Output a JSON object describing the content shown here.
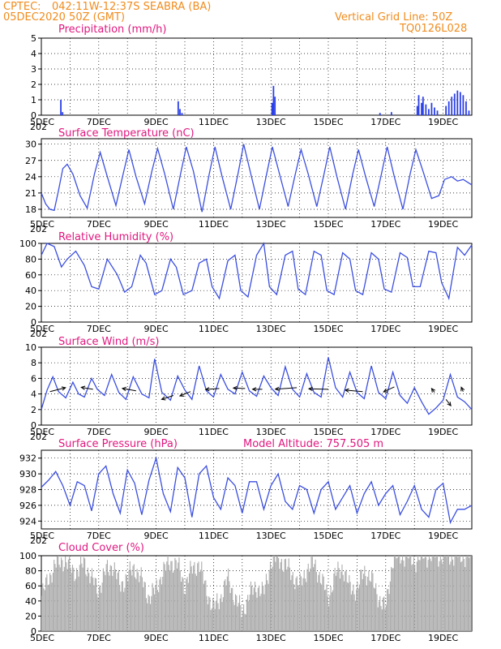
{
  "header": {
    "source": "CPTEC:",
    "location": "042:11W-12:37S  SEABRA (BA)",
    "init_time": "05DEC2020 50Z (GMT)",
    "grid_note": "Vertical Grid Line: 50Z",
    "product_code": "TQ0126L028"
  },
  "x_axis": {
    "first_label": "5DEC",
    "labels": [
      "7DEC",
      "9DEC",
      "11DEC",
      "13DEC",
      "15DEC",
      "17DEC",
      "19DEC"
    ],
    "first_sub": "202"
  },
  "colors": {
    "line": "#3b4fe0",
    "precip": "#2a3fe8",
    "cloud": "#aaaaaa",
    "header": "#f08c1e",
    "panel_title": "#e0187f"
  },
  "chart_data": [
    {
      "type": "bar",
      "title": "Precipitation (mm/h)",
      "ylim": [
        0,
        5
      ],
      "y_ticks": [
        "0",
        "1",
        "2",
        "3",
        "4",
        "5"
      ],
      "grid": true,
      "x_range_days": [
        0,
        15
      ],
      "spikes": [
        {
          "x": 0.68,
          "y": 1.0
        },
        {
          "x": 0.74,
          "y": 0.2
        },
        {
          "x": 4.77,
          "y": 0.9
        },
        {
          "x": 4.83,
          "y": 0.4
        },
        {
          "x": 4.9,
          "y": 0.15
        },
        {
          "x": 8.04,
          "y": 0.8
        },
        {
          "x": 8.09,
          "y": 1.9
        },
        {
          "x": 8.14,
          "y": 1.2
        },
        {
          "x": 11.8,
          "y": 0.15
        },
        {
          "x": 12.2,
          "y": 0.2
        },
        {
          "x": 13.1,
          "y": 0.6
        },
        {
          "x": 13.15,
          "y": 1.3
        },
        {
          "x": 13.25,
          "y": 0.8
        },
        {
          "x": 13.3,
          "y": 1.2
        },
        {
          "x": 13.4,
          "y": 0.7
        },
        {
          "x": 13.5,
          "y": 0.4
        },
        {
          "x": 13.6,
          "y": 0.8
        },
        {
          "x": 13.7,
          "y": 0.5
        },
        {
          "x": 13.8,
          "y": 0.3
        },
        {
          "x": 14.1,
          "y": 0.6
        },
        {
          "x": 14.2,
          "y": 0.9
        },
        {
          "x": 14.3,
          "y": 1.2
        },
        {
          "x": 14.4,
          "y": 1.4
        },
        {
          "x": 14.5,
          "y": 1.6
        },
        {
          "x": 14.6,
          "y": 1.5
        },
        {
          "x": 14.7,
          "y": 1.3
        },
        {
          "x": 14.8,
          "y": 0.9
        },
        {
          "x": 14.9,
          "y": 0.3
        }
      ]
    },
    {
      "type": "line",
      "title": "Surface Temperature (nC)",
      "ylim": [
        16.5,
        31
      ],
      "y_ticks": [
        "18",
        "21",
        "24",
        "27",
        "30"
      ],
      "grid": true,
      "x": [
        0,
        0.15,
        0.3,
        0.45,
        0.6,
        0.75,
        0.9,
        1.1,
        1.35,
        1.6,
        1.85,
        2.05,
        2.3,
        2.6,
        2.85,
        3.05,
        3.3,
        3.6,
        3.85,
        4.05,
        4.3,
        4.6,
        4.85,
        5.05,
        5.3,
        5.6,
        5.85,
        6.05,
        6.3,
        6.6,
        6.85,
        7.05,
        7.3,
        7.6,
        7.85,
        8.05,
        8.3,
        8.6,
        8.85,
        9.05,
        9.3,
        9.6,
        9.85,
        10.05,
        10.3,
        10.6,
        10.85,
        11.05,
        11.3,
        11.6,
        11.85,
        12.05,
        12.3,
        12.6,
        12.85,
        13.05,
        13.3,
        13.6,
        13.85,
        14.05,
        14.3,
        14.5,
        14.7,
        15.0
      ],
      "y": [
        21.0,
        19.0,
        18.0,
        17.8,
        21.5,
        25.5,
        26.3,
        24.5,
        20.5,
        18.2,
        24.5,
        28.5,
        24.0,
        18.7,
        24.5,
        29.0,
        24.0,
        19.0,
        25.0,
        29.2,
        24.5,
        18.0,
        24.5,
        29.5,
        25.0,
        17.5,
        24.5,
        29.5,
        24.0,
        18.0,
        24.5,
        30.0,
        24.5,
        18.0,
        24.5,
        29.5,
        24.5,
        18.5,
        24.5,
        29.0,
        24.5,
        18.5,
        24.5,
        29.5,
        24.0,
        18.0,
        24.5,
        29.0,
        24.0,
        18.5,
        24.5,
        29.5,
        24.0,
        18.0,
        24.5,
        29.0,
        25.0,
        20.0,
        20.5,
        23.5,
        24.0,
        23.2,
        23.5,
        22.5
      ]
    },
    {
      "type": "line",
      "title": "Relative Humidity (%)",
      "ylim": [
        0,
        100
      ],
      "y_ticks": [
        "0",
        "20",
        "40",
        "60",
        "80",
        "100"
      ],
      "grid": true,
      "x": [
        0,
        0.2,
        0.45,
        0.7,
        0.9,
        1.2,
        1.5,
        1.75,
        2.0,
        2.3,
        2.65,
        2.9,
        3.15,
        3.45,
        3.65,
        3.95,
        4.2,
        4.5,
        4.7,
        4.95,
        5.25,
        5.5,
        5.75,
        5.95,
        6.2,
        6.5,
        6.75,
        6.95,
        7.2,
        7.5,
        7.75,
        7.95,
        8.2,
        8.5,
        8.75,
        8.95,
        9.2,
        9.5,
        9.75,
        9.95,
        10.2,
        10.5,
        10.75,
        10.95,
        11.2,
        11.5,
        11.75,
        11.95,
        12.2,
        12.5,
        12.75,
        12.95,
        13.2,
        13.5,
        13.75,
        13.95,
        14.2,
        14.5,
        14.75,
        15.0
      ],
      "y": [
        85,
        100,
        96,
        70,
        80,
        90,
        72,
        45,
        42,
        80,
        60,
        38,
        45,
        85,
        75,
        35,
        40,
        80,
        70,
        35,
        40,
        75,
        80,
        45,
        30,
        78,
        85,
        40,
        32,
        85,
        100,
        45,
        35,
        85,
        90,
        42,
        35,
        90,
        85,
        40,
        35,
        88,
        80,
        40,
        35,
        88,
        80,
        42,
        38,
        88,
        82,
        45,
        45,
        90,
        88,
        50,
        30,
        95,
        85,
        98
      ]
    },
    {
      "type": "line",
      "title": "Surface Wind (m/s)",
      "ylim": [
        0,
        10
      ],
      "y_ticks": [
        "0",
        "2",
        "4",
        "6",
        "8",
        "10"
      ],
      "grid": true,
      "x": [
        0,
        0.2,
        0.4,
        0.6,
        0.85,
        1.1,
        1.3,
        1.5,
        1.75,
        1.95,
        2.2,
        2.45,
        2.7,
        2.95,
        3.2,
        3.5,
        3.75,
        3.95,
        4.2,
        4.5,
        4.75,
        5.0,
        5.25,
        5.5,
        5.75,
        6.0,
        6.25,
        6.5,
        6.75,
        7.0,
        7.25,
        7.5,
        7.75,
        8.0,
        8.25,
        8.5,
        8.75,
        9.0,
        9.25,
        9.5,
        9.75,
        10.0,
        10.25,
        10.5,
        10.75,
        11.0,
        11.25,
        11.5,
        11.75,
        12.0,
        12.25,
        12.5,
        12.75,
        13.0,
        13.25,
        13.5,
        13.75,
        14.0,
        14.25,
        14.5,
        14.75,
        15.0
      ],
      "y": [
        2.0,
        4.5,
        6.2,
        4.3,
        3.5,
        5.5,
        4.0,
        3.6,
        6.0,
        4.6,
        3.8,
        6.5,
        4.2,
        3.3,
        6.2,
        4.0,
        3.5,
        8.5,
        4.2,
        3.2,
        6.3,
        4.5,
        3.3,
        7.6,
        4.4,
        3.6,
        6.5,
        4.6,
        4.0,
        6.8,
        4.4,
        3.7,
        6.3,
        4.8,
        3.8,
        7.5,
        4.6,
        3.6,
        6.6,
        4.2,
        3.6,
        8.7,
        4.8,
        3.6,
        6.8,
        4.2,
        3.4,
        7.6,
        4.2,
        3.4,
        6.8,
        3.8,
        2.8,
        4.8,
        3.0,
        1.4,
        2.2,
        3.2,
        6.5,
        3.6,
        3.0,
        2.0
      ],
      "arrows": [
        {
          "x": 0.3,
          "y": 4.3,
          "u": 1.6,
          "v": 0.8
        },
        {
          "x": 1.8,
          "y": 4.6,
          "u": -1.2,
          "v": 0.4
        },
        {
          "x": 3.3,
          "y": 4.4,
          "u": -1.4,
          "v": 0.5
        },
        {
          "x": 4.6,
          "y": 3.8,
          "u": -1.2,
          "v": -0.8
        },
        {
          "x": 5.2,
          "y": 4.3,
          "u": -1.1,
          "v": -0.9
        },
        {
          "x": 6.2,
          "y": 4.7,
          "u": -1.4,
          "v": -0.2
        },
        {
          "x": 7.1,
          "y": 4.7,
          "u": -1.2,
          "v": 0.1
        },
        {
          "x": 7.7,
          "y": 4.6,
          "u": -1.0,
          "v": 0.0
        },
        {
          "x": 8.9,
          "y": 4.8,
          "u": -2.2,
          "v": -0.3
        },
        {
          "x": 10.0,
          "y": 4.6,
          "u": -2.0,
          "v": 0.1
        },
        {
          "x": 11.2,
          "y": 4.3,
          "u": -1.8,
          "v": 0.3
        },
        {
          "x": 12.3,
          "y": 4.9,
          "u": -1.1,
          "v": -1.0
        },
        {
          "x": 13.7,
          "y": 4.2,
          "u": -0.3,
          "v": 0.8
        },
        {
          "x": 14.1,
          "y": 3.3,
          "u": 0.5,
          "v": -1.3
        },
        {
          "x": 14.7,
          "y": 4.3,
          "u": -0.2,
          "v": 0.9
        }
      ]
    },
    {
      "type": "line",
      "title": "Surface Pressure (hPa)",
      "subtitle": "Model Altitude: 757.505 m",
      "ylim": [
        923,
        933
      ],
      "y_ticks": [
        "924",
        "926",
        "928",
        "930",
        "932"
      ],
      "grid": true,
      "x": [
        0,
        0.25,
        0.5,
        0.75,
        1.0,
        1.25,
        1.5,
        1.75,
        2.0,
        2.25,
        2.5,
        2.75,
        3.0,
        3.25,
        3.5,
        3.75,
        4.0,
        4.25,
        4.5,
        4.75,
        5.0,
        5.25,
        5.5,
        5.75,
        6.0,
        6.25,
        6.5,
        6.75,
        7.0,
        7.25,
        7.5,
        7.75,
        8.0,
        8.25,
        8.5,
        8.75,
        9.0,
        9.25,
        9.5,
        9.75,
        10.0,
        10.25,
        10.5,
        10.75,
        11.0,
        11.25,
        11.5,
        11.75,
        12.0,
        12.25,
        12.5,
        12.75,
        13.0,
        13.25,
        13.5,
        13.75,
        14.0,
        14.25,
        14.5,
        14.75,
        15.0
      ],
      "y": [
        928.3,
        929.2,
        930.3,
        928.5,
        926.0,
        929.0,
        928.5,
        925.3,
        930.0,
        931.0,
        927.5,
        925.0,
        930.5,
        928.8,
        924.8,
        929.2,
        932.0,
        927.5,
        925.2,
        930.8,
        929.5,
        924.5,
        930.0,
        931.0,
        927.0,
        925.5,
        929.5,
        928.5,
        925.0,
        929.0,
        929.0,
        925.5,
        928.5,
        930.0,
        926.5,
        925.5,
        928.5,
        928.0,
        925.0,
        928.0,
        929.0,
        925.5,
        927.0,
        928.5,
        925.0,
        927.5,
        929.0,
        926.0,
        927.5,
        928.5,
        924.8,
        926.5,
        928.5,
        925.5,
        924.5,
        928.0,
        928.8,
        923.8,
        925.5,
        925.5,
        926.0
      ]
    },
    {
      "type": "bar",
      "title": "Cloud Cover (%)",
      "ylim": [
        0,
        100
      ],
      "y_ticks": [
        "0",
        "20",
        "40",
        "60",
        "80",
        "100"
      ],
      "grid": true,
      "x_range_days": [
        0,
        15
      ],
      "segments": [
        {
          "x": 0.0,
          "y": 45
        },
        {
          "x": 0.25,
          "y": 70
        },
        {
          "x": 0.5,
          "y": 88
        },
        {
          "x": 0.75,
          "y": 95
        },
        {
          "x": 1.0,
          "y": 85
        },
        {
          "x": 1.25,
          "y": 78
        },
        {
          "x": 1.5,
          "y": 92
        },
        {
          "x": 1.75,
          "y": 70
        },
        {
          "x": 2.0,
          "y": 55
        },
        {
          "x": 2.25,
          "y": 80
        },
        {
          "x": 2.5,
          "y": 88
        },
        {
          "x": 2.75,
          "y": 60
        },
        {
          "x": 3.0,
          "y": 72
        },
        {
          "x": 3.25,
          "y": 85
        },
        {
          "x": 3.5,
          "y": 68
        },
        {
          "x": 3.75,
          "y": 45
        },
        {
          "x": 4.0,
          "y": 55
        },
        {
          "x": 4.25,
          "y": 80
        },
        {
          "x": 4.5,
          "y": 92
        },
        {
          "x": 4.75,
          "y": 88
        },
        {
          "x": 5.0,
          "y": 60
        },
        {
          "x": 5.25,
          "y": 82
        },
        {
          "x": 5.5,
          "y": 90
        },
        {
          "x": 5.75,
          "y": 55
        },
        {
          "x": 6.0,
          "y": 30
        },
        {
          "x": 6.25,
          "y": 45
        },
        {
          "x": 6.5,
          "y": 70
        },
        {
          "x": 6.75,
          "y": 45
        },
        {
          "x": 7.0,
          "y": 25
        },
        {
          "x": 7.25,
          "y": 48
        },
        {
          "x": 7.5,
          "y": 60
        },
        {
          "x": 7.75,
          "y": 50
        },
        {
          "x": 8.0,
          "y": 92
        },
        {
          "x": 8.25,
          "y": 97
        },
        {
          "x": 8.5,
          "y": 88
        },
        {
          "x": 8.75,
          "y": 75
        },
        {
          "x": 9.0,
          "y": 60
        },
        {
          "x": 9.25,
          "y": 82
        },
        {
          "x": 9.5,
          "y": 90
        },
        {
          "x": 9.75,
          "y": 70
        },
        {
          "x": 10.0,
          "y": 45
        },
        {
          "x": 10.25,
          "y": 75
        },
        {
          "x": 10.5,
          "y": 85
        },
        {
          "x": 10.75,
          "y": 58
        },
        {
          "x": 11.0,
          "y": 55
        },
        {
          "x": 11.25,
          "y": 80
        },
        {
          "x": 11.5,
          "y": 70
        },
        {
          "x": 11.75,
          "y": 45
        },
        {
          "x": 12.0,
          "y": 30
        },
        {
          "x": 12.25,
          "y": 95
        },
        {
          "x": 12.5,
          "y": 100
        },
        {
          "x": 12.75,
          "y": 100
        },
        {
          "x": 13.0,
          "y": 92
        },
        {
          "x": 13.25,
          "y": 100
        },
        {
          "x": 13.5,
          "y": 100
        },
        {
          "x": 13.75,
          "y": 100
        },
        {
          "x": 14.0,
          "y": 100
        },
        {
          "x": 14.25,
          "y": 100
        },
        {
          "x": 14.5,
          "y": 100
        },
        {
          "x": 14.75,
          "y": 100
        }
      ]
    }
  ]
}
